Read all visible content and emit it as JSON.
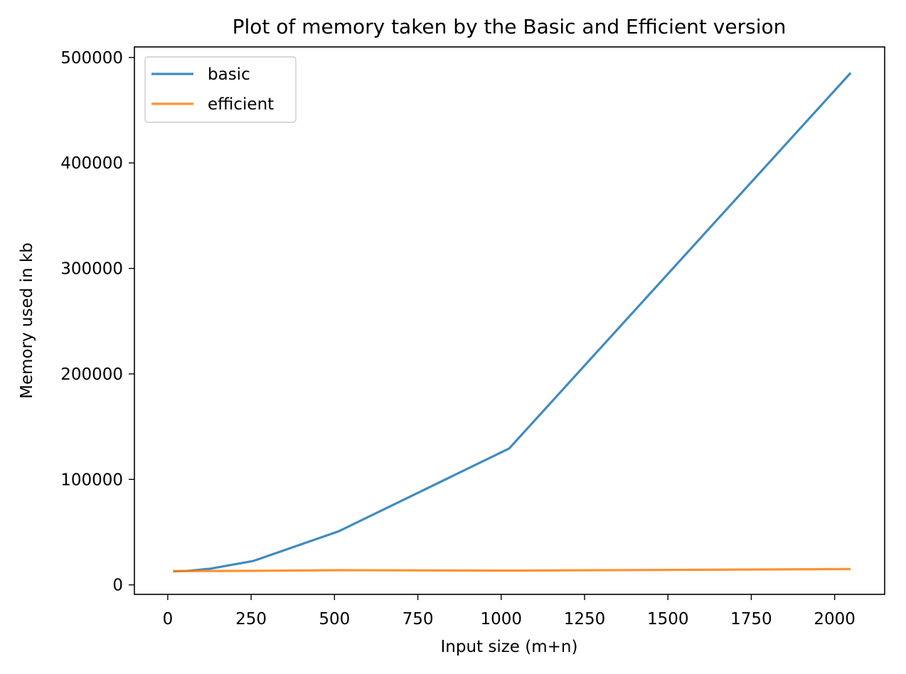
{
  "chart_data": {
    "type": "line",
    "title": "Plot of memory taken by the Basic and Efficient version",
    "xlabel": "Input size (m+n)",
    "ylabel": "Memory used in kb",
    "x": [
      16,
      64,
      128,
      256,
      512,
      1024,
      2048
    ],
    "xlim": [
      -100,
      2150
    ],
    "ylim": [
      -9000,
      510000
    ],
    "xticks": [
      0,
      250,
      500,
      750,
      1000,
      1250,
      1500,
      1750,
      2000
    ],
    "yticks": [
      0,
      100000,
      200000,
      300000,
      400000,
      500000
    ],
    "grid": false,
    "legend_position": "top-left",
    "series": [
      {
        "name": "basic",
        "color": "#1f77b4",
        "values": [
          12800,
          13300,
          15400,
          22600,
          50700,
          129300,
          485400
        ]
      },
      {
        "name": "efficient",
        "color": "#ff7f0e",
        "values": [
          13200,
          13200,
          13200,
          13300,
          13900,
          13500,
          15000
        ]
      }
    ]
  }
}
